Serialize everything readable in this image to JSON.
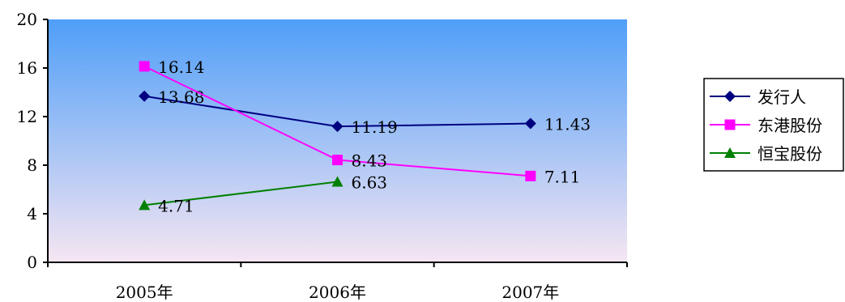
{
  "chart_data": {
    "type": "line",
    "categories": [
      "2005年",
      "2006年",
      "2007年"
    ],
    "ylim": [
      0,
      20
    ],
    "yticks": [
      "0",
      "4",
      "8",
      "12",
      "16",
      "20"
    ],
    "grid": false,
    "legend_position": "right",
    "series": [
      {
        "name": "发行人",
        "values": [
          13.68,
          11.19,
          11.43
        ],
        "labels": [
          "13.68",
          "11.19",
          "11.43"
        ],
        "color": "#000080",
        "marker": "diamond"
      },
      {
        "name": "东港股份",
        "values": [
          16.14,
          8.43,
          7.11
        ],
        "labels": [
          "16.14",
          "8.43",
          "7.11"
        ],
        "color": "#ff00ff",
        "marker": "square"
      },
      {
        "name": "恒宝股份",
        "values": [
          4.71,
          6.63,
          null
        ],
        "labels": [
          "4.71",
          "6.63",
          ""
        ],
        "color": "#008000",
        "marker": "triangle"
      }
    ],
    "background_gradient": [
      "#4f9ef8",
      "#f6e6f2"
    ]
  }
}
